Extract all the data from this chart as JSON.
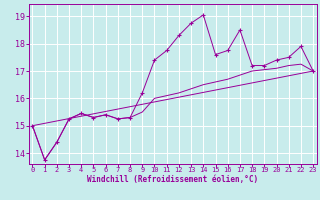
{
  "xlabel": "Windchill (Refroidissement éolien,°C)",
  "bg_color": "#c8ecec",
  "line_color": "#990099",
  "grid_color": "#ffffff",
  "x_ticks": [
    0,
    1,
    2,
    3,
    4,
    5,
    6,
    7,
    8,
    9,
    10,
    11,
    12,
    13,
    14,
    15,
    16,
    17,
    18,
    19,
    20,
    21,
    22,
    23
  ],
  "y_ticks": [
    14,
    15,
    16,
    17,
    18,
    19
  ],
  "ylim": [
    13.6,
    19.45
  ],
  "xlim": [
    -0.3,
    23.3
  ],
  "curve1": [
    15.0,
    13.75,
    14.4,
    15.25,
    15.45,
    15.3,
    15.4,
    15.25,
    15.3,
    16.2,
    17.4,
    17.75,
    18.3,
    18.75,
    19.05,
    17.6,
    17.75,
    18.5,
    17.2,
    17.2,
    17.4,
    17.5,
    17.9,
    17.0
  ],
  "curve2": [
    15.0,
    13.75,
    14.4,
    15.25,
    15.45,
    15.3,
    15.4,
    15.25,
    15.3,
    15.5,
    16.0,
    16.1,
    16.2,
    16.35,
    16.5,
    16.6,
    16.7,
    16.85,
    17.0,
    17.05,
    17.1,
    17.2,
    17.25,
    17.0
  ],
  "curve3_x": [
    0,
    23
  ],
  "curve3_y": [
    15.0,
    17.0
  ]
}
